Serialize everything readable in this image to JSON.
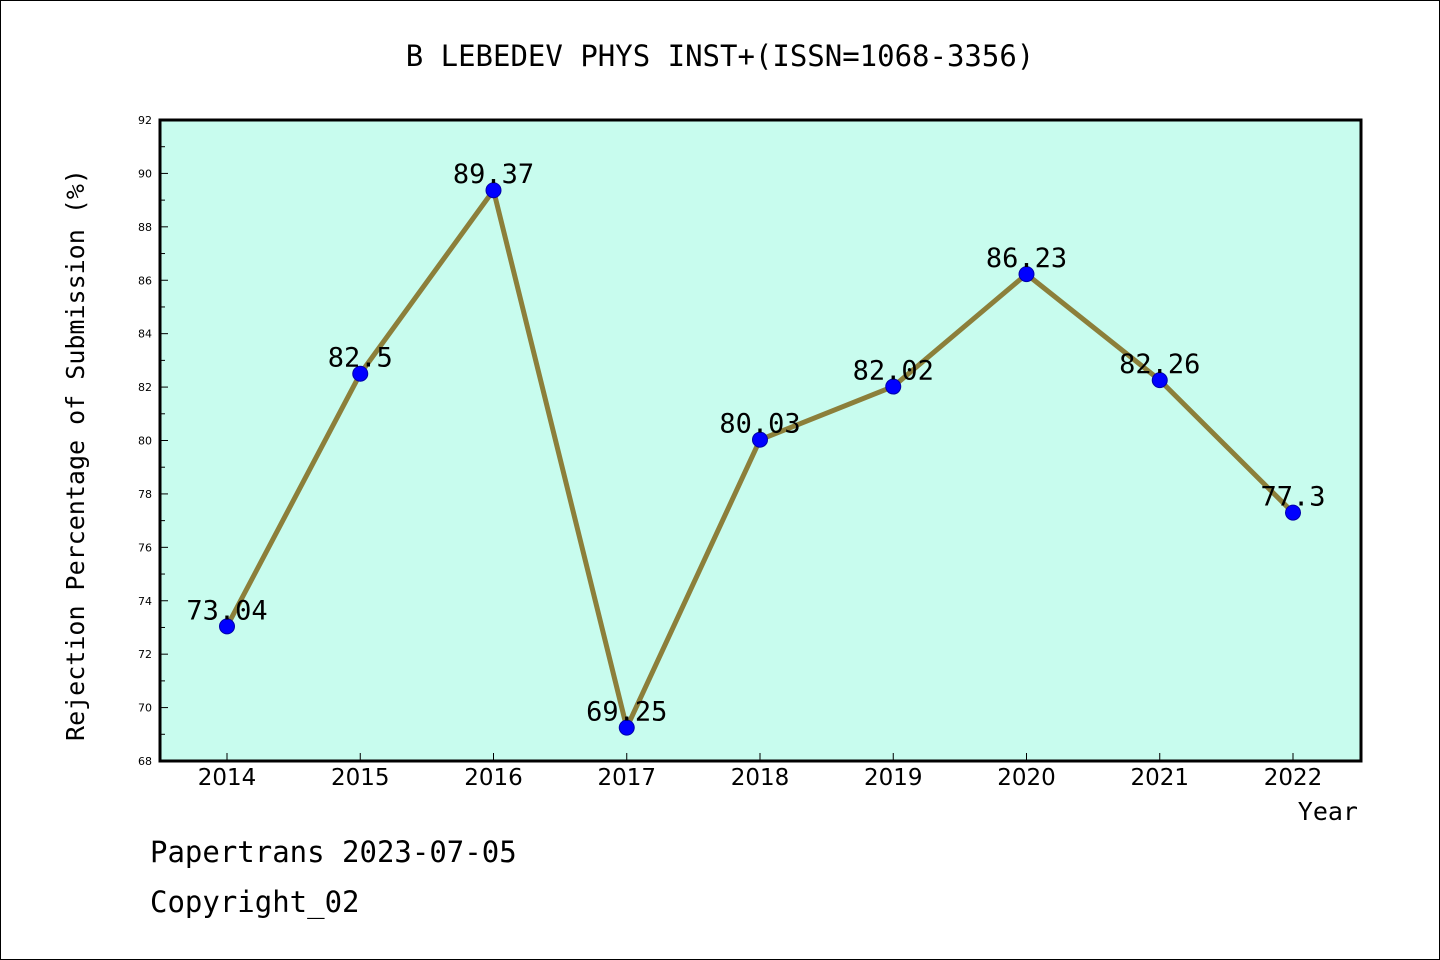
{
  "chart_data": {
    "type": "line",
    "title": "B LEBEDEV PHYS INST+(ISSN=1068-3356)",
    "xlabel": "Year",
    "ylabel": "Rejection Percentage of Submission (%)",
    "categories": [
      "2014",
      "2015",
      "2016",
      "2017",
      "2018",
      "2019",
      "2020",
      "2021",
      "2022"
    ],
    "values": [
      73.04,
      82.5,
      89.37,
      69.25,
      80.03,
      82.02,
      86.23,
      82.26,
      77.3
    ],
    "data_labels": [
      "73.04",
      "82.5",
      "89.37",
      "69.25",
      "80.03",
      "82.02",
      "86.23",
      "82.26",
      "77.3"
    ],
    "ylim": [
      68,
      92
    ],
    "yticks": [
      "68",
      "70",
      "72",
      "74",
      "76",
      "78",
      "80",
      "82",
      "84",
      "86",
      "88",
      "90",
      "92"
    ],
    "grid": false,
    "legend": "none",
    "colors": {
      "plot_background": "#c8fcee",
      "line": "#8c7f3a",
      "marker": "#0000ff"
    }
  },
  "footer": {
    "watermark": "Papertrans 2023-07-05",
    "copyright": "Copyright_02"
  }
}
